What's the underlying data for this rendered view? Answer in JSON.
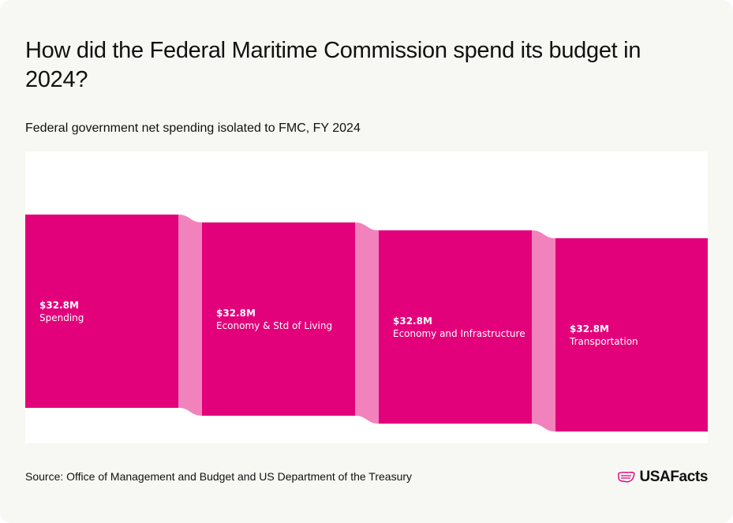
{
  "header": {
    "title": "How did the Federal Maritime Commission spend its budget in 2024?",
    "subtitle": "Federal government net spending isolated to FMC, FY 2024"
  },
  "footer": {
    "source": "Source: Office of Management and Budget and US Department of the Treasury",
    "brand": "USAFacts"
  },
  "colors": {
    "node": "#e3007b",
    "link": "#f282bc",
    "background": "#f7f7f3",
    "chart_background": "#ffffff",
    "text": "#111111",
    "brand_icon": "#e3007b"
  },
  "chart_data": {
    "type": "sankey",
    "title": "How did the Federal Maritime Commission spend its budget in 2024?",
    "subtitle": "Federal government net spending isolated to FMC, FY 2024",
    "units": "USD",
    "nodes": [
      {
        "label": "Spending",
        "value": 32.8,
        "value_label": "$32.8M"
      },
      {
        "label": "Economy & Std of Living",
        "value": 32.8,
        "value_label": "$32.8M"
      },
      {
        "label": "Economy and Infrastructure",
        "value": 32.8,
        "value_label": "$32.8M"
      },
      {
        "label": "Transportation",
        "value": 32.8,
        "value_label": "$32.8M"
      }
    ],
    "links": [
      {
        "source": "Spending",
        "target": "Economy & Std of Living",
        "value": 32.8
      },
      {
        "source": "Economy & Std of Living",
        "target": "Economy and Infrastructure",
        "value": 32.8
      },
      {
        "source": "Economy and Infrastructure",
        "target": "Transportation",
        "value": 32.8
      }
    ]
  }
}
